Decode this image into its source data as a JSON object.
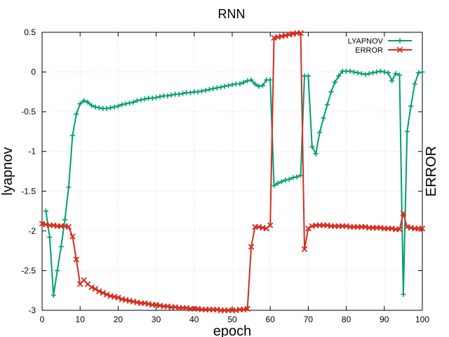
{
  "chart_data": {
    "type": "line",
    "title": "RNN",
    "xlabel": "epoch",
    "ylabel": "lyapnov",
    "y2label": "ERROR",
    "xlim": [
      0,
      100
    ],
    "ylim": [
      -3,
      0.5
    ],
    "xticks": [
      0,
      10,
      20,
      30,
      40,
      50,
      60,
      70,
      80,
      90,
      100
    ],
    "yticks": [
      0.5,
      0,
      -0.5,
      -1,
      -1.5,
      -2,
      -2.5,
      -3
    ],
    "ytick_labels": [
      "0.5",
      "0",
      "-0.5",
      "-1",
      "-1.5",
      "-2",
      "-2.5",
      "-3"
    ],
    "grid": true,
    "legend_position": "top-right",
    "series": [
      {
        "name": "LYAPNOV",
        "color": "#009e73",
        "marker": "plus",
        "x": [
          1,
          2,
          3,
          4,
          5,
          6,
          7,
          8,
          9,
          10,
          11,
          12,
          13,
          14,
          15,
          16,
          17,
          18,
          19,
          20,
          21,
          22,
          23,
          24,
          25,
          26,
          27,
          28,
          29,
          30,
          31,
          32,
          33,
          34,
          35,
          36,
          37,
          38,
          39,
          40,
          41,
          42,
          43,
          44,
          45,
          46,
          47,
          48,
          49,
          50,
          51,
          52,
          53,
          54,
          55,
          56,
          57,
          58,
          59,
          60,
          61,
          62,
          63,
          64,
          65,
          66,
          67,
          68,
          69,
          70,
          71,
          72,
          73,
          74,
          75,
          76,
          77,
          78,
          79,
          80,
          81,
          82,
          83,
          84,
          85,
          86,
          87,
          88,
          89,
          90,
          91,
          92,
          93,
          94,
          95,
          96,
          97,
          98,
          99,
          100
        ],
        "values": [
          -1.75,
          -2.08,
          -2.81,
          -2.5,
          -2.2,
          -1.86,
          -1.45,
          -0.8,
          -0.53,
          -0.4,
          -0.36,
          -0.38,
          -0.42,
          -0.44,
          -0.45,
          -0.46,
          -0.46,
          -0.45,
          -0.44,
          -0.43,
          -0.41,
          -0.4,
          -0.39,
          -0.38,
          -0.36,
          -0.35,
          -0.34,
          -0.33,
          -0.33,
          -0.32,
          -0.31,
          -0.3,
          -0.3,
          -0.29,
          -0.28,
          -0.28,
          -0.27,
          -0.26,
          -0.26,
          -0.25,
          -0.25,
          -0.24,
          -0.23,
          -0.22,
          -0.21,
          -0.2,
          -0.19,
          -0.18,
          -0.17,
          -0.16,
          -0.15,
          -0.15,
          -0.13,
          -0.11,
          -0.1,
          -0.15,
          -0.18,
          -0.17,
          -0.1,
          -0.1,
          -1.43,
          -1.4,
          -1.38,
          -1.36,
          -1.35,
          -1.33,
          -1.32,
          -1.3,
          -0.05,
          -0.05,
          -0.94,
          -1.03,
          -0.76,
          -0.58,
          -0.41,
          -0.25,
          -0.13,
          -0.05,
          0.01,
          0.01,
          0.01,
          0.0,
          -0.01,
          -0.02,
          -0.03,
          -0.02,
          -0.01,
          0.0,
          0.01,
          0.0,
          -0.01,
          -0.11,
          -0.02,
          -0.04,
          -2.8,
          -0.75,
          -0.43,
          -0.15,
          -0.01,
          0.0
        ]
      },
      {
        "name": "ERROR",
        "color": "#d62d20",
        "marker": "x",
        "x": [
          0,
          1,
          2,
          3,
          4,
          5,
          6,
          7,
          8,
          9,
          10,
          11,
          12,
          13,
          14,
          15,
          16,
          17,
          18,
          19,
          20,
          21,
          22,
          23,
          24,
          25,
          26,
          27,
          28,
          29,
          30,
          31,
          32,
          33,
          34,
          35,
          36,
          37,
          38,
          39,
          40,
          41,
          42,
          43,
          44,
          45,
          46,
          47,
          48,
          49,
          50,
          51,
          52,
          53,
          54,
          55,
          56,
          57,
          58,
          59,
          60,
          61,
          62,
          63,
          64,
          65,
          66,
          67,
          68,
          69,
          70,
          71,
          72,
          73,
          74,
          75,
          76,
          77,
          78,
          79,
          80,
          81,
          82,
          83,
          84,
          85,
          86,
          87,
          88,
          89,
          90,
          91,
          92,
          93,
          94,
          95,
          96,
          97,
          98,
          99,
          100
        ],
        "values": [
          -1.91,
          -1.92,
          -1.93,
          -1.93,
          -1.94,
          -1.94,
          -1.94,
          -1.95,
          -2.07,
          -2.36,
          -2.67,
          -2.62,
          -2.67,
          -2.71,
          -2.73,
          -2.76,
          -2.78,
          -2.8,
          -2.82,
          -2.83,
          -2.84,
          -2.86,
          -2.87,
          -2.88,
          -2.89,
          -2.9,
          -2.91,
          -2.91,
          -2.92,
          -2.93,
          -2.93,
          -2.94,
          -2.95,
          -2.95,
          -2.96,
          -2.96,
          -2.97,
          -2.97,
          -2.97,
          -2.98,
          -2.98,
          -2.98,
          -2.99,
          -2.99,
          -2.99,
          -2.99,
          -2.99,
          -3.0,
          -3.0,
          -3.0,
          -3.0,
          -3.0,
          -2.99,
          -2.99,
          -2.98,
          -2.2,
          -1.95,
          -1.95,
          -1.96,
          -1.97,
          -1.93,
          0.43,
          0.44,
          0.45,
          0.46,
          0.47,
          0.48,
          0.49,
          0.49,
          -2.23,
          -1.97,
          -1.94,
          -1.93,
          -1.93,
          -1.93,
          -1.93,
          -1.94,
          -1.94,
          -1.94,
          -1.94,
          -1.94,
          -1.95,
          -1.95,
          -1.95,
          -1.95,
          -1.95,
          -1.96,
          -1.96,
          -1.96,
          -1.96,
          -1.97,
          -1.97,
          -1.97,
          -1.98,
          -1.98,
          -1.78,
          -1.95,
          -1.96,
          -1.97,
          -1.97,
          -1.97
        ]
      }
    ]
  }
}
